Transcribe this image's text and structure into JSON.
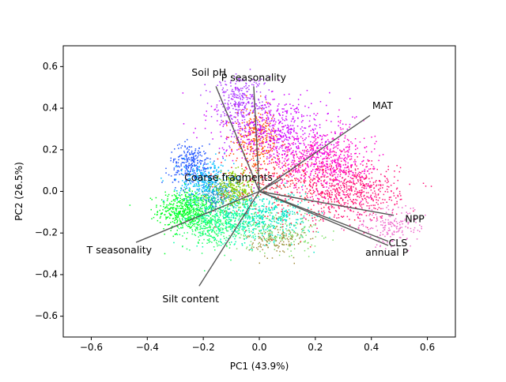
{
  "chart_data": {
    "type": "scatter",
    "title": "",
    "xlabel": "PC1 (43.9%)",
    "ylabel": "PC2 (26.5%)",
    "xlim": [
      -0.7,
      0.7
    ],
    "ylim": [
      -0.7,
      0.7
    ],
    "xticks": [
      -0.6,
      -0.4,
      -0.2,
      0.0,
      0.2,
      0.4,
      0.6
    ],
    "yticks": [
      -0.6,
      -0.4,
      -0.2,
      0.0,
      0.2,
      0.4,
      0.6
    ],
    "xtick_labels": [
      "−0.6",
      "−0.4",
      "−0.2",
      "0.0",
      "0.2",
      "0.4",
      "0.6"
    ],
    "ytick_labels": [
      "−0.6",
      "−0.4",
      "−0.2",
      "0.0",
      "0.2",
      "0.4",
      "0.6"
    ],
    "grid": false,
    "legend": "none",
    "clusters": [
      {
        "color": "#00ff22",
        "cx": -0.26,
        "cy": -0.09,
        "sx": 0.05,
        "sy": 0.05,
        "n": 520
      },
      {
        "color": "#22ff66",
        "cx": -0.17,
        "cy": -0.15,
        "sx": 0.05,
        "sy": 0.06,
        "n": 380
      },
      {
        "color": "#00ffaa",
        "cx": -0.08,
        "cy": -0.12,
        "sx": 0.07,
        "sy": 0.06,
        "n": 420
      },
      {
        "color": "#00e5c8",
        "cx": 0.05,
        "cy": -0.12,
        "sx": 0.07,
        "sy": 0.06,
        "n": 300
      },
      {
        "color": "#7fe06a",
        "cx": 0.06,
        "cy": -0.19,
        "sx": 0.08,
        "sy": 0.05,
        "n": 200
      },
      {
        "color": "#a08a3a",
        "cx": 0.06,
        "cy": -0.24,
        "sx": 0.05,
        "sy": 0.04,
        "n": 120
      },
      {
        "color": "#2255ff",
        "cx": -0.24,
        "cy": 0.13,
        "sx": 0.04,
        "sy": 0.05,
        "n": 280
      },
      {
        "color": "#00c0ff",
        "cx": -0.19,
        "cy": 0.04,
        "sx": 0.05,
        "sy": 0.05,
        "n": 300
      },
      {
        "color": "#2b8cc4",
        "cx": -0.14,
        "cy": -0.02,
        "sx": 0.05,
        "sy": 0.04,
        "n": 200
      },
      {
        "color": "#88cc00",
        "cx": -0.09,
        "cy": 0.01,
        "sx": 0.04,
        "sy": 0.04,
        "n": 250
      },
      {
        "color": "#ff5500",
        "cx": -0.01,
        "cy": 0.25,
        "sx": 0.04,
        "sy": 0.07,
        "n": 300
      },
      {
        "color": "#ff2233",
        "cx": 0.08,
        "cy": 0.05,
        "sx": 0.1,
        "sy": 0.09,
        "n": 320
      },
      {
        "color": "#ff1177",
        "cx": 0.32,
        "cy": 0.0,
        "sx": 0.09,
        "sy": 0.07,
        "n": 650
      },
      {
        "color": "#ff00cc",
        "cx": 0.22,
        "cy": 0.16,
        "sx": 0.09,
        "sy": 0.07,
        "n": 600
      },
      {
        "color": "#cc00ff",
        "cx": 0.05,
        "cy": 0.3,
        "sx": 0.1,
        "sy": 0.08,
        "n": 520
      },
      {
        "color": "#aa33ff",
        "cx": -0.07,
        "cy": 0.43,
        "sx": 0.05,
        "sy": 0.07,
        "n": 300
      },
      {
        "color": "#ee66cc",
        "cx": 0.47,
        "cy": -0.17,
        "sx": 0.06,
        "sy": 0.05,
        "n": 180
      }
    ],
    "loadings": [
      {
        "label": "Soil pH",
        "x": -0.155,
        "y": 0.505,
        "lx": -0.18,
        "ly": 0.57
      },
      {
        "label": "P seasonality",
        "x": -0.02,
        "y": 0.505,
        "lx": -0.02,
        "ly": 0.545
      },
      {
        "label": "MAT",
        "x": 0.395,
        "y": 0.365,
        "lx": 0.44,
        "ly": 0.41
      },
      {
        "label": "Coarse fragments",
        "x": 0.08,
        "y": 0.06,
        "lx": -0.11,
        "ly": 0.065
      },
      {
        "label": "NPP",
        "x": 0.48,
        "y": -0.115,
        "lx": 0.555,
        "ly": -0.135
      },
      {
        "label": "CLS",
        "x": 0.46,
        "y": -0.24,
        "lx": 0.495,
        "ly": -0.25
      },
      {
        "label": "annual P",
        "x": 0.46,
        "y": -0.26,
        "lx": 0.455,
        "ly": -0.295
      },
      {
        "label": "T seasonality",
        "x": -0.44,
        "y": -0.245,
        "lx": -0.5,
        "ly": -0.285
      },
      {
        "label": "Silt content",
        "x": -0.215,
        "y": -0.455,
        "lx": -0.245,
        "ly": -0.52
      }
    ]
  }
}
